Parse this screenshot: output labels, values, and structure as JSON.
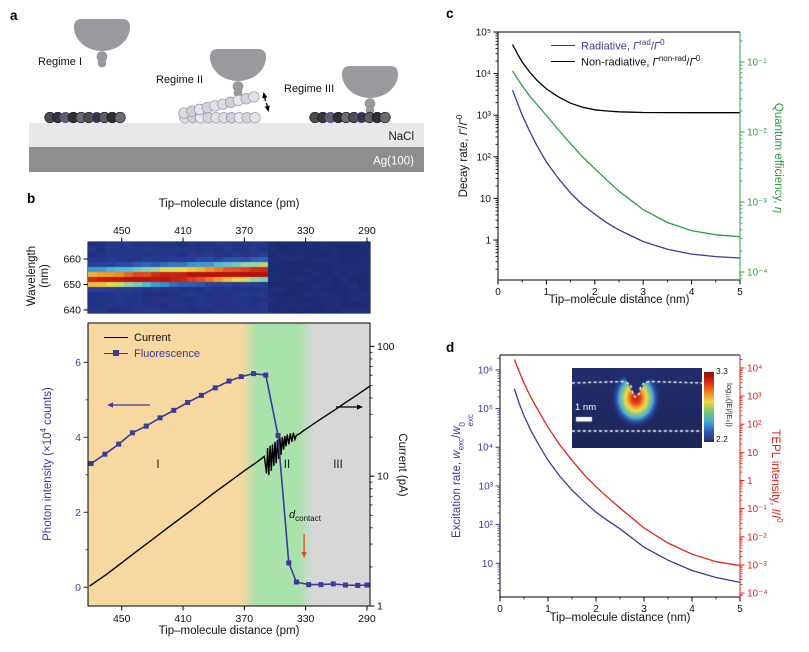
{
  "panels": {
    "a": {
      "label": "a",
      "regime1": "Regime I",
      "regime2": "Regime II",
      "regime3": "Regime III",
      "nacl_label": "NaCl",
      "ag_label": "Ag(100)"
    },
    "b": {
      "label": "b",
      "top_axis_title": "Tip–molecule distance (pm)",
      "wavelength_label_html": "Wavelength<br>(nm)",
      "left_label_html": "Photon intensity (×10<sup>4</sup> counts)",
      "right_label": "Current (pA)",
      "x_title": "Tip–molecule distance (pm)",
      "legend": {
        "current": "Current",
        "fluorescence": "Fluorescence"
      },
      "annotation_html": "<i>d</i><sub>contact</sub>"
    },
    "c": {
      "label": "c",
      "left_label_html": "Decay rate, <i>Γ</i>/<i>Γ</i><sup>0</sup>",
      "right_label_html": "Quantum efficiency, <i>η</i>",
      "x_title": "Tip–molecule distance (nm)",
      "legend": {
        "radiative_html": "Radiative, <i>Γ</i><sup>rad</sup>/<i>Γ</i><sup>0</sup>",
        "nonradiative_html": "Non-radiative, <i>Γ</i><sup>non-rad</sup>/<i>Γ</i><sup>0</sup>"
      }
    },
    "d": {
      "label": "d",
      "left_label_html": "Excitation rate, <i>w</i><sub>exc</sub>/<i>w</i><span class=\"ss\"><span>0</span><span>exc</span></span>",
      "right_label_html": "TEPL intensity, <i>I</i>/<i>I</i><sup>0</sup>",
      "x_title": "Tip–molecule distance (nm)",
      "inset": {
        "scalebar_label": "1 nm",
        "colorbar_top": "3.3",
        "colorbar_bottom": "2.2",
        "colorbar_label": "log₁₀(|E|/|E₀|)"
      }
    }
  },
  "colors": {
    "fluorescence_blue": "#3d3a99",
    "current_black": "#000000",
    "quantum_green": "#2f9e41",
    "tepl_red": "#e0251b",
    "region_orange": "#f7d8a0",
    "region_green": "#a9e2ab",
    "region_gray": "#d7d7d7",
    "annotation_arrow_red": "#e34a28",
    "tip_gray": "#9a9a9e",
    "nacl_gray": "#e8e8eb",
    "ag_gray": "#8e8e91",
    "colorbar_gradient": [
      "#8c1008",
      "#d42a18",
      "#f08020",
      "#ecd845",
      "#7cc470",
      "#3fa8d8",
      "#2e55ae",
      "#27306e"
    ]
  },
  "chart_data": [
    {
      "id": "spectral_map",
      "type": "heatmap",
      "x_label": "Tip–molecule distance (pm)",
      "y_label": "Wavelength (nm)",
      "xlim": [
        472,
        288
      ],
      "x_ticks": [
        {
          "v": 450,
          "l": "450"
        },
        {
          "v": 410,
          "l": "410"
        },
        {
          "v": 370,
          "l": "370"
        },
        {
          "v": 330,
          "l": "330"
        },
        {
          "v": 290,
          "l": "290"
        }
      ],
      "wavelength_lim": [
        666.7,
        638.8
      ],
      "y_ticks": [
        {
          "v": 660,
          "l": "660"
        },
        {
          "v": 650,
          "l": "650"
        },
        {
          "v": 640,
          "l": "640"
        }
      ],
      "band": {
        "start_pm": 472,
        "cutoff_pm": 352,
        "lambda_start": 651.2,
        "lambda_end": 654.2,
        "sigma_up_nm": 3.0,
        "sigma_down_nm": 1.5,
        "amp_start": 0.85,
        "amp_end": 1.02
      },
      "background_level": 0.1,
      "post_cutoff_level": 0.055,
      "colormap": [
        [
          0.0,
          24,
          34,
          96
        ],
        [
          0.08,
          34,
          48,
          128
        ],
        [
          0.18,
          42,
          64,
          158
        ],
        [
          0.3,
          50,
          110,
          190
        ],
        [
          0.42,
          70,
          185,
          215
        ],
        [
          0.52,
          150,
          215,
          160
        ],
        [
          0.62,
          235,
          220,
          70
        ],
        [
          0.74,
          242,
          150,
          40
        ],
        [
          0.86,
          225,
          60,
          28
        ],
        [
          1.0,
          180,
          18,
          14
        ]
      ]
    },
    {
      "id": "intensity_current",
      "type": "line",
      "xlim": [
        472,
        288
      ],
      "x_ticks": [
        {
          "v": 450,
          "l": "450"
        },
        {
          "v": 410,
          "l": "410"
        },
        {
          "v": 370,
          "l": "370"
        },
        {
          "v": 330,
          "l": "330"
        },
        {
          "v": 290,
          "l": "290"
        }
      ],
      "left_ylim": [
        -0.5,
        7.05
      ],
      "left_ticks": [
        {
          "v": 0,
          "l": "0"
        },
        {
          "v": 2,
          "l": "2"
        },
        {
          "v": 4,
          "l": "4"
        },
        {
          "v": 6,
          "l": "6"
        }
      ],
      "left_minor": [
        1,
        3,
        5
      ],
      "right_log_lim": [
        0,
        2.18
      ],
      "right_ticks": [
        {
          "v": 1,
          "l": "1"
        },
        {
          "v": 10,
          "l": "10"
        },
        {
          "v": 100,
          "l": "100"
        }
      ],
      "regions": {
        "labels": [
          "I",
          "II",
          "III"
        ],
        "label_pm": [
          426,
          342,
          310
        ],
        "orange_green_boundary_pm": [
          372,
          362
        ],
        "green_gray_boundary_pm": [
          335,
          325
        ]
      },
      "annotations": {
        "d_contact_pm": 331
      },
      "series": {
        "fluorescence": {
          "units": "×10⁴ counts",
          "points": [
            [
              470,
              3.3
            ],
            [
              461,
              3.55
            ],
            [
              452,
              3.82
            ],
            [
              443,
              4.12
            ],
            [
              434,
              4.3
            ],
            [
              425,
              4.52
            ],
            [
              416,
              4.72
            ],
            [
              407,
              4.93
            ],
            [
              398,
              5.12
            ],
            [
              389,
              5.32
            ],
            [
              380,
              5.5
            ],
            [
              372,
              5.62
            ],
            [
              364,
              5.7
            ],
            [
              356,
              5.66
            ],
            [
              348,
              4.05
            ],
            [
              341,
              0.65
            ],
            [
              336,
              0.14
            ],
            [
              328,
              0.07
            ],
            [
              320,
              0.07
            ],
            [
              312,
              0.09
            ],
            [
              304,
              0.06
            ],
            [
              296,
              0.05
            ],
            [
              290,
              0.06
            ]
          ]
        },
        "current": {
          "units": "pA",
          "points": [
            [
              471,
              1.42
            ],
            [
              460,
              1.75
            ],
            [
              450,
              2.15
            ],
            [
              440,
              2.65
            ],
            [
              430,
              3.25
            ],
            [
              420,
              4.0
            ],
            [
              410,
              4.9
            ],
            [
              400,
              6.0
            ],
            [
              390,
              7.4
            ],
            [
              380,
              9.0
            ],
            [
              370,
              11.0
            ],
            [
              362,
              12.8
            ],
            [
              357,
              14.2
            ],
            [
              355.5,
              10.5
            ],
            [
              354.8,
              16.5
            ],
            [
              354,
              10.2
            ],
            [
              353.2,
              17.2
            ],
            [
              352.4,
              11.0
            ],
            [
              351.6,
              17.6
            ],
            [
              350.8,
              12.0
            ],
            [
              350,
              18.4
            ],
            [
              349.2,
              12.6
            ],
            [
              348.4,
              19.0
            ],
            [
              347.6,
              13.6
            ],
            [
              346.8,
              19.6
            ],
            [
              346,
              14.6
            ],
            [
              345.2,
              20.0
            ],
            [
              344.4,
              16.0
            ],
            [
              343.6,
              20.4
            ],
            [
              342.8,
              17.0
            ],
            [
              342,
              21.0
            ],
            [
              341,
              17.6
            ],
            [
              340,
              21.4
            ],
            [
              339,
              18.4
            ],
            [
              338,
              21.6
            ],
            [
              337,
              19.2
            ],
            [
              336,
              20.6
            ],
            [
              334,
              21.2
            ],
            [
              331,
              22.6
            ],
            [
              328,
              23.8
            ],
            [
              325,
              25.2
            ],
            [
              320,
              27.6
            ],
            [
              315,
              30.2
            ],
            [
              310,
              33.0
            ],
            [
              305,
              36.2
            ],
            [
              300,
              39.6
            ],
            [
              295,
              43.4
            ],
            [
              290,
              47.6
            ],
            [
              288,
              49.5
            ]
          ]
        }
      }
    },
    {
      "id": "decay_rates",
      "type": "line",
      "xlim": [
        0,
        5
      ],
      "x_ticks": [
        0,
        1,
        2,
        3,
        4,
        5
      ],
      "x_minor": [
        0.5,
        1.5,
        2.5,
        3.5,
        4.5
      ],
      "left_log_lim": [
        -0.96,
        5
      ],
      "left_ticks": [
        {
          "v": 1,
          "l": "1"
        },
        {
          "v": 10,
          "l": "10"
        },
        {
          "v": 100,
          "l": "10²"
        },
        {
          "v": 1000,
          "l": "10³"
        },
        {
          "v": 10000,
          "l": "10⁴"
        },
        {
          "v": 100000,
          "l": "10⁵"
        }
      ],
      "right_log_lim": [
        -4.114,
        -0.571
      ],
      "right_ticks": [
        {
          "v": 0.1,
          "l": "10⁻¹"
        },
        {
          "v": 0.01,
          "l": "10⁻²"
        },
        {
          "v": 0.001,
          "l": "10⁻³"
        },
        {
          "v": 0.0001,
          "l": "10⁻⁴"
        }
      ],
      "x": [
        0.3,
        0.4,
        0.5,
        0.65,
        0.8,
        1,
        1.25,
        1.5,
        1.75,
        2,
        2.25,
        2.5,
        3,
        3.5,
        4,
        4.5,
        5
      ],
      "series": [
        {
          "name": "radiative",
          "axis": "left",
          "values": [
            4000,
            2000,
            1000,
            420,
            190,
            75,
            30,
            13.5,
            7,
            4.2,
            2.6,
            1.75,
            0.92,
            0.6,
            0.46,
            0.4,
            0.37
          ]
        },
        {
          "name": "non_radiative",
          "axis": "left",
          "values": [
            50000,
            30000,
            19000,
            11000,
            7000,
            4300,
            2750,
            1950,
            1560,
            1350,
            1260,
            1210,
            1165,
            1155,
            1150,
            1150,
            1150
          ]
        },
        {
          "name": "quantum_efficiency",
          "axis": "right",
          "values": [
            0.075,
            0.058,
            0.046,
            0.033,
            0.025,
            0.0172,
            0.0107,
            0.0068,
            0.0044,
            0.003,
            0.00205,
            0.00143,
            0.00078,
            0.00051,
            0.00039,
            0.00034,
            0.00032
          ]
        }
      ]
    },
    {
      "id": "excitation_tepl",
      "type": "line",
      "xlim": [
        0,
        5
      ],
      "x_ticks": [
        0,
        1,
        2,
        3,
        4,
        5
      ],
      "x_minor": [
        0.5,
        1.5,
        2.5,
        3.5,
        4.5
      ],
      "left_log_lim": [
        0.128,
        6.385
      ],
      "left_ticks": [
        {
          "v": 10,
          "l": "10"
        },
        {
          "v": 100,
          "l": "10²"
        },
        {
          "v": 1000,
          "l": "10³"
        },
        {
          "v": 10000,
          "l": "10⁴"
        },
        {
          "v": 100000,
          "l": "10⁵"
        },
        {
          "v": 1000000,
          "l": "10⁶"
        }
      ],
      "right_log_lim": [
        -4.14,
        4.46
      ],
      "right_ticks": [
        {
          "v": 10000,
          "l": "10⁴"
        },
        {
          "v": 1000,
          "l": "10³"
        },
        {
          "v": 100,
          "l": "10²"
        },
        {
          "v": 10,
          "l": "10"
        },
        {
          "v": 1,
          "l": "1"
        },
        {
          "v": 0.1,
          "l": "10⁻¹"
        },
        {
          "v": 0.01,
          "l": "10⁻²"
        },
        {
          "v": 0.001,
          "l": "10⁻³"
        },
        {
          "v": 0.0001,
          "l": "10⁻⁴"
        }
      ],
      "x": [
        0.3,
        0.4,
        0.5,
        0.65,
        0.8,
        1,
        1.25,
        1.5,
        1.75,
        2,
        2.25,
        2.5,
        3,
        3.5,
        4,
        4.5,
        5
      ],
      "series": [
        {
          "name": "excitation_rate",
          "axis": "left",
          "values": [
            320000,
            135000,
            65000,
            26000,
            12000,
            4600,
            1750,
            780,
            390,
            210,
            125,
            78,
            26,
            12,
            6.5,
            4.3,
            3.2
          ]
        },
        {
          "name": "tepl_intensity",
          "axis": "right",
          "values": [
            20000,
            7500,
            2900,
            850,
            300,
            78,
            18,
            5.2,
            1.65,
            0.6,
            0.245,
            0.105,
            0.0205,
            0.006,
            0.0024,
            0.0013,
            0.00095
          ]
        }
      ],
      "inset": {
        "field_map_range": [
          2.2,
          3.3
        ],
        "scalebar_nm": 1
      }
    }
  ]
}
